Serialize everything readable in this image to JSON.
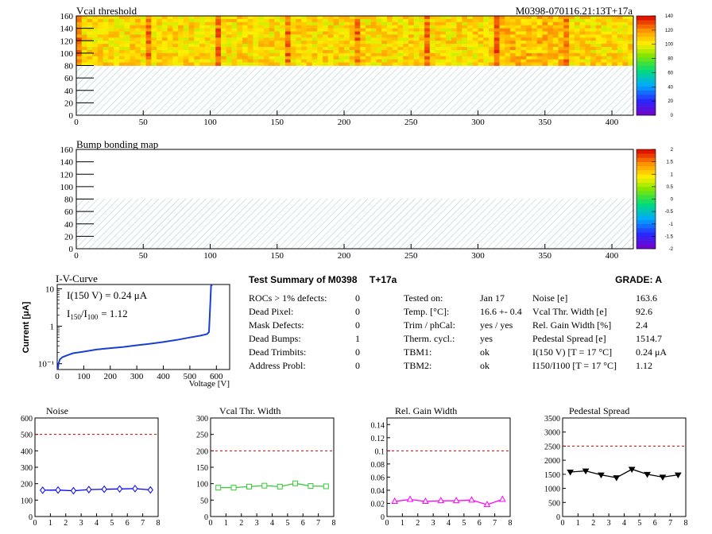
{
  "map_vcal": {
    "title": "Vcal threshold",
    "module_label": "M0398-070116.21:13T+17a",
    "x_ticks": [
      "0",
      "50",
      "100",
      "150",
      "200",
      "250",
      "300",
      "350",
      "400"
    ],
    "y_ticks": [
      "0",
      "20",
      "40",
      "60",
      "80",
      "100",
      "120",
      "140",
      "160"
    ],
    "xlim": [
      0,
      416
    ],
    "ylim": [
      0,
      160
    ],
    "palette_ticks": [
      "0",
      "20",
      "40",
      "60",
      "80",
      "100",
      "120",
      "140"
    ]
  },
  "map_bump": {
    "title": "Bump bonding map",
    "x_ticks": [
      "0",
      "50",
      "100",
      "150",
      "200",
      "250",
      "300",
      "350",
      "400"
    ],
    "y_ticks": [
      "0",
      "20",
      "40",
      "60",
      "80",
      "100",
      "120",
      "140",
      "160"
    ],
    "xlim": [
      0,
      416
    ],
    "ylim": [
      0,
      160
    ],
    "palette_ticks": [
      "-2",
      "-1.5",
      "-1",
      "-0.5",
      "0",
      "0.5",
      "1",
      "1.5",
      "2"
    ]
  },
  "iv": {
    "title": "I-V-Curve",
    "line1": "I(150 V) = 0.24 μA",
    "line2_main": "I",
    "line2_sub1": "150",
    "line2_slash": "/I",
    "line2_sub2": "100",
    "line2_val": "= 1.12",
    "ylabel": "Current [μA]",
    "xlabel": "Voltage [V]",
    "x_ticks": [
      "0",
      "100",
      "200",
      "300",
      "400",
      "500",
      "600"
    ],
    "y_ticks": [
      "10⁻¹",
      "1",
      "10"
    ]
  },
  "summary": {
    "title": "Test Summary of M0398",
    "tag": "T+17a",
    "grade": "GRADE:  A",
    "col1": [
      {
        "k": "ROCs > 1% defects:",
        "v": "0"
      },
      {
        "k": "Dead Pixel:",
        "v": "0"
      },
      {
        "k": "Mask Defects:",
        "v": "0"
      },
      {
        "k": "Dead Bumps:",
        "v": "1"
      },
      {
        "k": "Dead Trimbits:",
        "v": "0"
      },
      {
        "k": "Address Probl:",
        "v": "0"
      }
    ],
    "col2": [
      {
        "k": "Tested on:",
        "v": "Jan 17"
      },
      {
        "k": "Temp. [°C]:",
        "v": "16.6 +- 0.4"
      },
      {
        "k": "Trim / phCal:",
        "v": "yes / yes"
      },
      {
        "k": "Therm. cycl.:",
        "v": "yes"
      },
      {
        "k": "TBM1:",
        "v": "ok"
      },
      {
        "k": "TBM2:",
        "v": "ok"
      }
    ],
    "col3": [
      {
        "k": "Noise [e]",
        "v": "163.6"
      },
      {
        "k": "Vcal Thr. Width [e]",
        "v": "92.6"
      },
      {
        "k": "Rel. Gain Width [%]",
        "v": "2.4"
      },
      {
        "k": "Pedestal Spread [e]",
        "v": "1514.7"
      },
      {
        "k": "I(150 V) [T = 17 °C]",
        "v": "0.24 μA"
      },
      {
        "k": "I150/I100  [T = 17 °C]",
        "v": "1.12"
      }
    ]
  },
  "chart_data": [
    {
      "type": "heatmap",
      "title": "Vcal threshold",
      "xlim": [
        0,
        416
      ],
      "ylim": [
        0,
        160
      ],
      "z_range": [
        0,
        140
      ],
      "filled_rows_y": [
        80,
        160
      ],
      "typical_value": 105,
      "note_region": "y 0-80 hatched (no data)"
    },
    {
      "type": "heatmap",
      "title": "Bump bonding map",
      "xlim": [
        0,
        416
      ],
      "ylim": [
        0,
        160
      ],
      "z_range": [
        -2,
        2
      ]
    },
    {
      "type": "line",
      "title": "I-V-Curve",
      "xlabel": "Voltage [V]",
      "ylabel": "Current [μA]",
      "ylog": true,
      "xlim": [
        0,
        650
      ],
      "ylim": [
        0.07,
        13
      ],
      "x": [
        2,
        5,
        10,
        20,
        40,
        60,
        100,
        150,
        200,
        250,
        300,
        350,
        400,
        450,
        500,
        540,
        565,
        572,
        575,
        578,
        580,
        582,
        585
      ],
      "y": [
        0.07,
        0.1,
        0.13,
        0.15,
        0.17,
        0.19,
        0.21,
        0.24,
        0.26,
        0.28,
        0.31,
        0.34,
        0.38,
        0.43,
        0.5,
        0.56,
        0.62,
        0.7,
        2,
        6,
        12,
        14,
        14
      ]
    },
    {
      "type": "line",
      "title": "Noise",
      "xlim": [
        0,
        8
      ],
      "ylim": [
        0,
        600
      ],
      "x_ticks": [
        "0",
        "1",
        "2",
        "3",
        "4",
        "5",
        "6",
        "7",
        "8"
      ],
      "y_ticks": [
        "0",
        "100",
        "200",
        "300",
        "400",
        "500",
        "600"
      ],
      "reference_line": 500,
      "color": "#0000ff",
      "marker": "diamond",
      "x": [
        0.5,
        1.5,
        2.5,
        3.5,
        4.5,
        5.5,
        6.5,
        7.5
      ],
      "values": [
        160,
        161,
        157,
        164,
        166,
        168,
        170,
        162
      ]
    },
    {
      "type": "line",
      "title": "Vcal Thr. Width",
      "xlim": [
        0,
        8
      ],
      "ylim": [
        0,
        300
      ],
      "x_ticks": [
        "0",
        "1",
        "2",
        "3",
        "4",
        "5",
        "6",
        "7",
        "8"
      ],
      "y_ticks": [
        "0",
        "50",
        "100",
        "150",
        "200",
        "250",
        "300"
      ],
      "reference_line": 200,
      "color": "#33cc33",
      "marker": "square",
      "x": [
        0.5,
        1.5,
        2.5,
        3.5,
        4.5,
        5.5,
        6.5,
        7.5
      ],
      "values": [
        88,
        88,
        91,
        94,
        91,
        101,
        93,
        92
      ]
    },
    {
      "type": "line",
      "title": "Rel. Gain Width",
      "xlim": [
        0,
        8
      ],
      "ylim": [
        0,
        0.15
      ],
      "x_ticks": [
        "0",
        "1",
        "2",
        "3",
        "4",
        "5",
        "6",
        "7",
        "8"
      ],
      "y_ticks": [
        "0",
        "0.02",
        "0.04",
        "0.06",
        "0.08",
        "0.1",
        "0.12",
        "0.14"
      ],
      "reference_line": 0.1,
      "color": "#ff00ff",
      "marker": "triangle",
      "x": [
        0.5,
        1.5,
        2.5,
        3.5,
        4.5,
        5.5,
        6.5,
        7.5
      ],
      "values": [
        0.023,
        0.026,
        0.023,
        0.024,
        0.024,
        0.025,
        0.018,
        0.026
      ]
    },
    {
      "type": "line",
      "title": "Pedestal Spread",
      "xlim": [
        0,
        8
      ],
      "ylim": [
        0,
        3500
      ],
      "x_ticks": [
        "0",
        "1",
        "2",
        "3",
        "4",
        "5",
        "6",
        "7",
        "8"
      ],
      "y_ticks": [
        "0",
        "500",
        "1000",
        "1500",
        "2000",
        "2500",
        "3000",
        "3500"
      ],
      "reference_line": 2500,
      "color": "#000000",
      "marker": "triangle-down",
      "x": [
        0.5,
        1.5,
        2.5,
        3.5,
        4.5,
        5.5,
        6.5,
        7.5
      ],
      "values": [
        1580,
        1620,
        1480,
        1380,
        1680,
        1500,
        1400,
        1480
      ]
    }
  ]
}
